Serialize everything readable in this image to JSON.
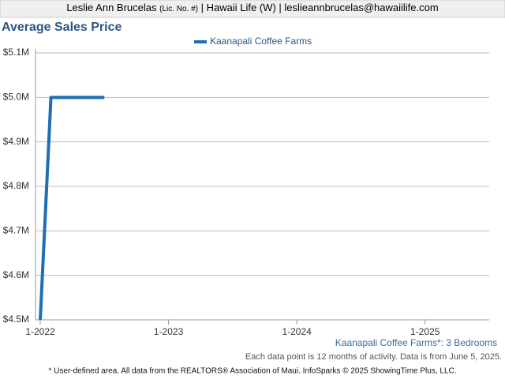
{
  "header": {
    "name": "Leslie Ann Brucelas",
    "license": "(Lic. No. #)",
    "rest": "| Hawaii Life (W) | leslieannbrucelas@hawaiilife.com"
  },
  "chart_data": {
    "type": "line",
    "title": "Average Sales Price",
    "x": [
      "1-2022",
      "2-2022",
      "3-2022",
      "4-2022",
      "5-2022",
      "6-2022",
      "7-2022"
    ],
    "series": [
      {
        "name": "Kaanapali Coffee Farms",
        "color": "#1f6eb5",
        "values": [
          4500000,
          5000000,
          5000000,
          5000000,
          5000000,
          5000000,
          5000000
        ]
      }
    ],
    "xlim": [
      "1-2022",
      "7-2025"
    ],
    "xticks": [
      "1-2022",
      "1-2023",
      "1-2024",
      "1-2025"
    ],
    "ylim": [
      4500000,
      5100000
    ],
    "yticks": [
      {
        "value": 4500000,
        "label": "$4.5M"
      },
      {
        "value": 4600000,
        "label": "$4.6M"
      },
      {
        "value": 4700000,
        "label": "$4.7M"
      },
      {
        "value": 4800000,
        "label": "$4.8M"
      },
      {
        "value": 4900000,
        "label": "$4.9M"
      },
      {
        "value": 5000000,
        "label": "$5.0M"
      },
      {
        "value": 5100000,
        "label": "$5.1M"
      }
    ],
    "grid": true,
    "legend": "top"
  },
  "footer": {
    "area": "Kaanapali Coffee Farms*: 3 Bedrooms",
    "note": "Each data point is 12 months of activity. Data is from June 5, 2025.",
    "credit": "* User-defined area. All data from the REALTORS® Association of Maui. InfoSparks © 2025 ShowingTime Plus, LLC."
  }
}
